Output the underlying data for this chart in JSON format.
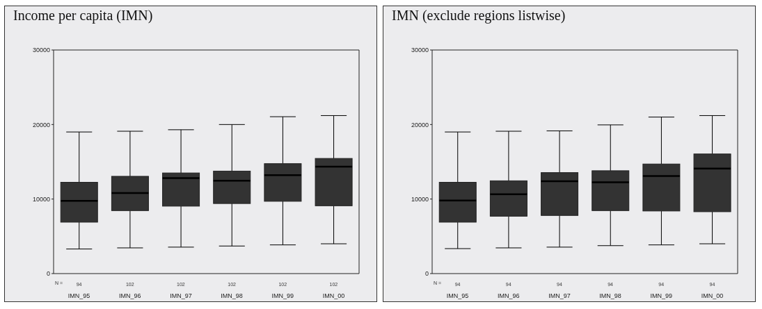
{
  "chart_data": [
    {
      "type": "box",
      "title": "Income per capita (IMN)",
      "categories": [
        "IMN_95",
        "IMN_96",
        "IMN_97",
        "IMN_98",
        "IMN_99",
        "IMN_00"
      ],
      "color": "#333333",
      "ylim": [
        0,
        30000
      ],
      "yticks": [
        0,
        10000,
        20000,
        30000
      ],
      "grid": false,
      "legend": false,
      "boxes": [
        {
          "low": 3300,
          "q1": 6900,
          "median": 9750,
          "q3": 12250,
          "high": 19000
        },
        {
          "low": 3450,
          "q1": 8450,
          "median": 10800,
          "q3": 13050,
          "high": 19100
        },
        {
          "low": 3550,
          "q1": 9050,
          "median": 12800,
          "q3": 13500,
          "high": 19300
        },
        {
          "low": 3700,
          "q1": 9400,
          "median": 12450,
          "q3": 13750,
          "high": 20000
        },
        {
          "low": 3850,
          "q1": 9700,
          "median": 13200,
          "q3": 14750,
          "high": 21050
        },
        {
          "low": 4000,
          "q1": 9100,
          "median": 14350,
          "q3": 15450,
          "high": 21200
        }
      ],
      "annotations": [
        "N =",
        "94",
        "102",
        "102",
        "102",
        "102",
        "102"
      ]
    },
    {
      "type": "box",
      "title": "IMN (exclude regions listwise)",
      "categories": [
        "IMN_95",
        "IMN_96",
        "IMN_97",
        "IMN_98",
        "IMN_99",
        "IMN_00"
      ],
      "color": "#333333",
      "ylim": [
        0,
        30000
      ],
      "yticks": [
        0,
        10000,
        20000,
        30000
      ],
      "grid": false,
      "legend": false,
      "boxes": [
        {
          "low": 3350,
          "q1": 6900,
          "median": 9800,
          "q3": 12250,
          "high": 19000
        },
        {
          "low": 3450,
          "q1": 7700,
          "median": 10650,
          "q3": 12450,
          "high": 19100
        },
        {
          "low": 3550,
          "q1": 7800,
          "median": 12400,
          "q3": 13550,
          "high": 19150
        },
        {
          "low": 3750,
          "q1": 8450,
          "median": 12250,
          "q3": 13800,
          "high": 19950
        },
        {
          "low": 3850,
          "q1": 8400,
          "median": 13100,
          "q3": 14700,
          "high": 21000
        },
        {
          "low": 4000,
          "q1": 8300,
          "median": 14100,
          "q3": 16050,
          "high": 21200
        }
      ],
      "annotations": [
        "N =",
        "94",
        "94",
        "94",
        "94",
        "94",
        "94"
      ]
    }
  ]
}
